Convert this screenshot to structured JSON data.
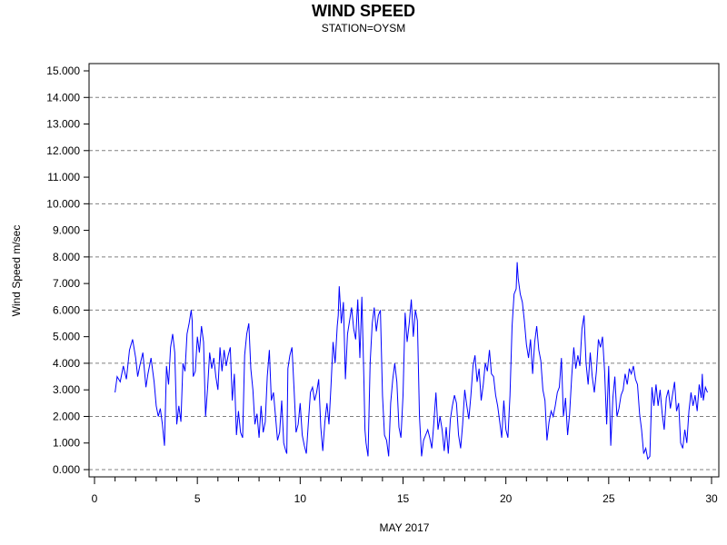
{
  "chart_data": {
    "type": "line",
    "title": "WIND SPEED",
    "subtitle": "STATION=OYSM",
    "xlabel": "MAY 2017",
    "ylabel": "Wind Speed m/sec",
    "xlim": [
      0,
      30
    ],
    "ylim": [
      0,
      15
    ],
    "x_ticks": [
      "0",
      "5",
      "10",
      "15",
      "20",
      "25",
      "30"
    ],
    "y_ticks": [
      "0.000",
      "1.000",
      "2.000",
      "3.000",
      "4.000",
      "5.000",
      "6.000",
      "7.000",
      "8.000",
      "9.000",
      "10.000",
      "11.000",
      "12.000",
      "13.000",
      "14.000",
      "15.000"
    ],
    "grid": "horizontal dashed at even values",
    "series": [
      {
        "color": "#0000ff",
        "points": [
          [
            1.0,
            2.9
          ],
          [
            1.1,
            3.5
          ],
          [
            1.25,
            3.3
          ],
          [
            1.4,
            3.9
          ],
          [
            1.55,
            3.4
          ],
          [
            1.7,
            4.5
          ],
          [
            1.85,
            4.9
          ],
          [
            2.0,
            4.2
          ],
          [
            2.1,
            3.5
          ],
          [
            2.2,
            3.9
          ],
          [
            2.35,
            4.4
          ],
          [
            2.5,
            3.1
          ],
          [
            2.6,
            3.6
          ],
          [
            2.75,
            4.2
          ],
          [
            2.9,
            3.3
          ],
          [
            3.0,
            2.4
          ],
          [
            3.1,
            2.0
          ],
          [
            3.2,
            2.3
          ],
          [
            3.3,
            1.7
          ],
          [
            3.4,
            0.9
          ],
          [
            3.5,
            3.9
          ],
          [
            3.6,
            3.2
          ],
          [
            3.7,
            4.6
          ],
          [
            3.8,
            5.1
          ],
          [
            3.9,
            4.4
          ],
          [
            4.0,
            1.7
          ],
          [
            4.1,
            2.4
          ],
          [
            4.2,
            1.8
          ],
          [
            4.3,
            4.0
          ],
          [
            4.4,
            3.7
          ],
          [
            4.5,
            5.1
          ],
          [
            4.6,
            5.5
          ],
          [
            4.7,
            6.0
          ],
          [
            4.75,
            5.6
          ],
          [
            4.8,
            3.5
          ],
          [
            4.9,
            3.7
          ],
          [
            5.0,
            5.0
          ],
          [
            5.1,
            4.4
          ],
          [
            5.2,
            5.4
          ],
          [
            5.3,
            4.8
          ],
          [
            5.4,
            2.0
          ],
          [
            5.5,
            3.1
          ],
          [
            5.6,
            4.4
          ],
          [
            5.7,
            3.8
          ],
          [
            5.8,
            4.2
          ],
          [
            5.9,
            3.5
          ],
          [
            6.0,
            3.0
          ],
          [
            6.1,
            4.6
          ],
          [
            6.2,
            3.7
          ],
          [
            6.3,
            4.5
          ],
          [
            6.4,
            3.9
          ],
          [
            6.5,
            4.3
          ],
          [
            6.6,
            4.6
          ],
          [
            6.7,
            2.6
          ],
          [
            6.8,
            3.6
          ],
          [
            6.9,
            1.3
          ],
          [
            7.0,
            2.2
          ],
          [
            7.1,
            1.4
          ],
          [
            7.2,
            1.2
          ],
          [
            7.3,
            4.3
          ],
          [
            7.4,
            5.1
          ],
          [
            7.5,
            5.5
          ],
          [
            7.6,
            3.8
          ],
          [
            7.7,
            3.0
          ],
          [
            7.8,
            1.7
          ],
          [
            7.9,
            2.1
          ],
          [
            8.0,
            1.2
          ],
          [
            8.1,
            2.4
          ],
          [
            8.2,
            1.4
          ],
          [
            8.3,
            1.8
          ],
          [
            8.4,
            3.5
          ],
          [
            8.5,
            4.5
          ],
          [
            8.6,
            2.6
          ],
          [
            8.7,
            2.9
          ],
          [
            8.8,
            2.0
          ],
          [
            8.9,
            1.1
          ],
          [
            9.0,
            1.4
          ],
          [
            9.1,
            2.6
          ],
          [
            9.2,
            1.0
          ],
          [
            9.3,
            0.7
          ],
          [
            9.35,
            0.6
          ],
          [
            9.4,
            3.8
          ],
          [
            9.5,
            4.3
          ],
          [
            9.6,
            4.6
          ],
          [
            9.7,
            3.1
          ],
          [
            9.8,
            1.4
          ],
          [
            9.9,
            1.7
          ],
          [
            10.0,
            2.5
          ],
          [
            10.1,
            1.3
          ],
          [
            10.2,
            0.9
          ],
          [
            10.3,
            0.6
          ],
          [
            10.4,
            1.8
          ],
          [
            10.5,
            2.9
          ],
          [
            10.6,
            3.1
          ],
          [
            10.7,
            2.6
          ],
          [
            10.8,
            2.9
          ],
          [
            10.9,
            3.4
          ],
          [
            11.0,
            1.6
          ],
          [
            11.1,
            0.7
          ],
          [
            11.2,
            1.8
          ],
          [
            11.3,
            2.5
          ],
          [
            11.4,
            1.7
          ],
          [
            11.5,
            3.2
          ],
          [
            11.6,
            4.8
          ],
          [
            11.7,
            4.0
          ],
          [
            11.8,
            5.4
          ],
          [
            11.85,
            5.8
          ],
          [
            11.9,
            6.9
          ],
          [
            12.0,
            5.5
          ],
          [
            12.1,
            6.3
          ],
          [
            12.2,
            3.4
          ],
          [
            12.3,
            5.1
          ],
          [
            12.4,
            5.6
          ],
          [
            12.5,
            6.1
          ],
          [
            12.6,
            5.3
          ],
          [
            12.7,
            4.9
          ],
          [
            12.8,
            6.4
          ],
          [
            12.9,
            4.2
          ],
          [
            13.0,
            6.5
          ],
          [
            13.1,
            3.3
          ],
          [
            13.15,
            1.5
          ],
          [
            13.2,
            1.0
          ],
          [
            13.3,
            0.5
          ],
          [
            13.4,
            4.0
          ],
          [
            13.5,
            5.5
          ],
          [
            13.6,
            6.1
          ],
          [
            13.7,
            5.2
          ],
          [
            13.8,
            5.8
          ],
          [
            13.9,
            6.0
          ],
          [
            14.0,
            2.8
          ],
          [
            14.1,
            1.3
          ],
          [
            14.2,
            1.1
          ],
          [
            14.3,
            0.5
          ],
          [
            14.4,
            2.5
          ],
          [
            14.5,
            3.4
          ],
          [
            14.6,
            4.0
          ],
          [
            14.7,
            3.3
          ],
          [
            14.8,
            1.6
          ],
          [
            14.9,
            1.2
          ],
          [
            15.0,
            2.8
          ],
          [
            15.1,
            5.9
          ],
          [
            15.2,
            4.8
          ],
          [
            15.3,
            5.5
          ],
          [
            15.4,
            6.4
          ],
          [
            15.5,
            5.0
          ],
          [
            15.6,
            6.0
          ],
          [
            15.7,
            5.6
          ],
          [
            15.8,
            2.0
          ],
          [
            15.9,
            0.5
          ],
          [
            16.0,
            1.1
          ],
          [
            16.1,
            1.3
          ],
          [
            16.2,
            1.5
          ],
          [
            16.3,
            1.2
          ],
          [
            16.4,
            0.8
          ],
          [
            16.5,
            1.8
          ],
          [
            16.6,
            2.9
          ],
          [
            16.7,
            1.5
          ],
          [
            16.8,
            2.0
          ],
          [
            16.9,
            1.5
          ],
          [
            17.0,
            0.7
          ],
          [
            17.1,
            1.6
          ],
          [
            17.2,
            0.6
          ],
          [
            17.3,
            1.9
          ],
          [
            17.4,
            2.4
          ],
          [
            17.5,
            2.8
          ],
          [
            17.6,
            2.5
          ],
          [
            17.7,
            1.3
          ],
          [
            17.8,
            0.8
          ],
          [
            17.9,
            1.7
          ],
          [
            18.0,
            3.0
          ],
          [
            18.1,
            2.4
          ],
          [
            18.2,
            1.9
          ],
          [
            18.3,
            2.8
          ],
          [
            18.4,
            3.9
          ],
          [
            18.5,
            4.3
          ],
          [
            18.6,
            3.3
          ],
          [
            18.7,
            3.8
          ],
          [
            18.8,
            2.6
          ],
          [
            18.9,
            3.2
          ],
          [
            19.0,
            4.0
          ],
          [
            19.1,
            3.7
          ],
          [
            19.2,
            4.5
          ],
          [
            19.3,
            3.6
          ],
          [
            19.4,
            3.5
          ],
          [
            19.5,
            2.8
          ],
          [
            19.6,
            2.4
          ],
          [
            19.7,
            1.8
          ],
          [
            19.8,
            1.2
          ],
          [
            19.9,
            2.6
          ],
          [
            20.0,
            1.5
          ],
          [
            20.1,
            1.2
          ],
          [
            20.2,
            2.8
          ],
          [
            20.3,
            5.4
          ],
          [
            20.4,
            6.6
          ],
          [
            20.5,
            6.8
          ],
          [
            20.55,
            7.8
          ],
          [
            20.6,
            7.2
          ],
          [
            20.7,
            6.6
          ],
          [
            20.8,
            6.3
          ],
          [
            20.9,
            5.6
          ],
          [
            21.0,
            4.7
          ],
          [
            21.1,
            4.2
          ],
          [
            21.2,
            4.9
          ],
          [
            21.3,
            3.6
          ],
          [
            21.4,
            4.8
          ],
          [
            21.5,
            5.4
          ],
          [
            21.6,
            4.5
          ],
          [
            21.7,
            4.1
          ],
          [
            21.8,
            3.0
          ],
          [
            21.9,
            2.6
          ],
          [
            22.0,
            1.1
          ],
          [
            22.1,
            1.8
          ],
          [
            22.2,
            2.2
          ],
          [
            22.3,
            2.0
          ],
          [
            22.4,
            2.4
          ],
          [
            22.5,
            2.9
          ],
          [
            22.6,
            3.1
          ],
          [
            22.7,
            4.2
          ],
          [
            22.8,
            2.0
          ],
          [
            22.9,
            2.7
          ],
          [
            23.0,
            1.3
          ],
          [
            23.1,
            2.1
          ],
          [
            23.2,
            3.5
          ],
          [
            23.3,
            4.6
          ],
          [
            23.4,
            3.8
          ],
          [
            23.5,
            4.3
          ],
          [
            23.6,
            3.9
          ],
          [
            23.7,
            5.3
          ],
          [
            23.8,
            5.8
          ],
          [
            23.9,
            4.0
          ],
          [
            24.0,
            3.2
          ],
          [
            24.1,
            4.4
          ],
          [
            24.2,
            3.5
          ],
          [
            24.3,
            2.9
          ],
          [
            24.4,
            3.7
          ],
          [
            24.5,
            4.9
          ],
          [
            24.6,
            4.6
          ],
          [
            24.7,
            5.0
          ],
          [
            24.8,
            3.7
          ],
          [
            24.9,
            1.7
          ],
          [
            25.0,
            3.9
          ],
          [
            25.1,
            0.9
          ],
          [
            25.2,
            2.7
          ],
          [
            25.3,
            3.5
          ],
          [
            25.4,
            2.0
          ],
          [
            25.5,
            2.3
          ],
          [
            25.6,
            2.8
          ],
          [
            25.7,
            3.0
          ],
          [
            25.8,
            3.6
          ],
          [
            25.9,
            3.2
          ],
          [
            26.0,
            3.8
          ],
          [
            26.1,
            3.6
          ],
          [
            26.2,
            3.9
          ],
          [
            26.3,
            3.4
          ],
          [
            26.4,
            3.2
          ],
          [
            26.5,
            2.1
          ],
          [
            26.6,
            1.5
          ],
          [
            26.7,
            0.6
          ],
          [
            26.8,
            0.8
          ],
          [
            26.9,
            0.4
          ],
          [
            27.0,
            0.5
          ],
          [
            27.1,
            3.1
          ],
          [
            27.2,
            2.4
          ],
          [
            27.3,
            3.2
          ],
          [
            27.4,
            2.4
          ],
          [
            27.5,
            3.0
          ],
          [
            27.6,
            2.1
          ],
          [
            27.7,
            1.5
          ],
          [
            27.8,
            2.7
          ],
          [
            27.9,
            3.0
          ],
          [
            28.0,
            2.3
          ],
          [
            28.1,
            2.8
          ],
          [
            28.2,
            3.3
          ],
          [
            28.3,
            2.2
          ],
          [
            28.4,
            2.5
          ],
          [
            28.5,
            1.0
          ],
          [
            28.6,
            0.8
          ],
          [
            28.7,
            1.5
          ],
          [
            28.8,
            1.0
          ],
          [
            28.9,
            2.2
          ],
          [
            29.0,
            2.9
          ],
          [
            29.1,
            2.4
          ],
          [
            29.2,
            2.8
          ],
          [
            29.3,
            2.2
          ],
          [
            29.4,
            3.2
          ],
          [
            29.5,
            2.7
          ],
          [
            29.55,
            3.6
          ],
          [
            29.6,
            2.6
          ],
          [
            29.7,
            3.1
          ],
          [
            29.8,
            2.9
          ]
        ]
      }
    ]
  }
}
